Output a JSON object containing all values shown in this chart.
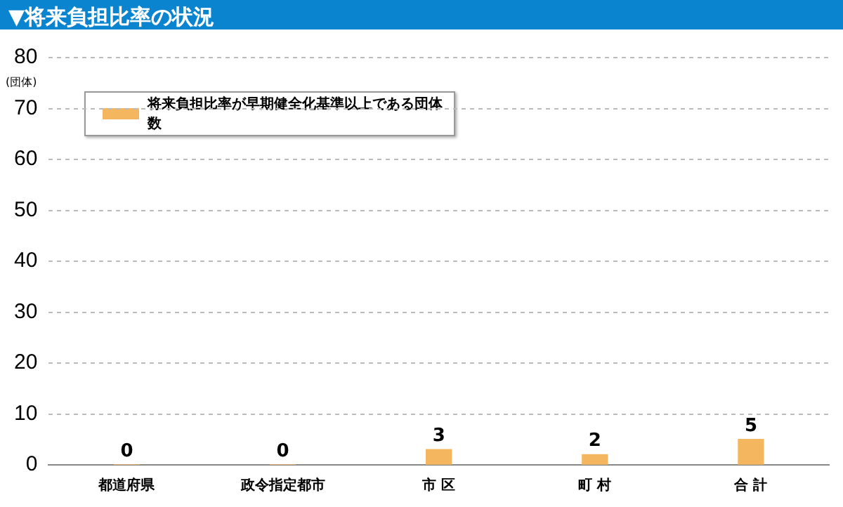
{
  "chart_data": {
    "type": "bar",
    "title": "▼将来負担比率の状況",
    "ylabel": "(団体)",
    "categories": [
      "都道府県",
      "政令指定都市",
      "市 区",
      "町 村",
      "合 計"
    ],
    "series": [
      {
        "name": "将来負担比率が早期健全化基準以上である団体数",
        "color": "#f5b660",
        "values": [
          0,
          0,
          3,
          2,
          5
        ]
      }
    ],
    "ylim": [
      0,
      80
    ],
    "yticks": [
      0,
      10,
      20,
      30,
      40,
      50,
      60,
      70,
      80
    ],
    "grid": "y",
    "legend": "top left",
    "data_labels": true
  }
}
